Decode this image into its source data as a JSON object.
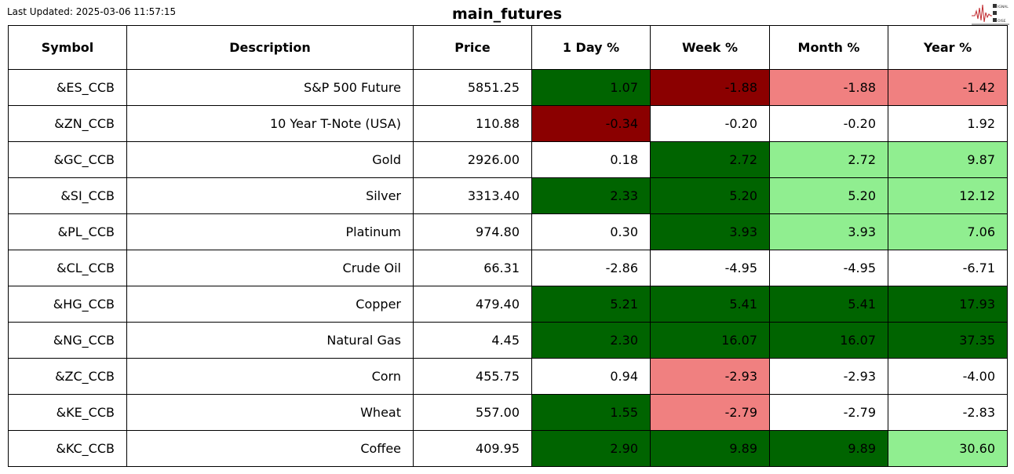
{
  "last_updated": "Last Updated: 2025-03-06 11:57:15",
  "title": "main_futures",
  "logo": {
    "text": "Signal 2 Noise",
    "accent": "#c0282d"
  },
  "colors": {
    "dark_green": "#006400",
    "dark_red": "#8b0000",
    "light_red": "#f08080",
    "light_green": "#90ee90",
    "neutral": "#ffffff"
  },
  "chart_data": {
    "type": "table",
    "title": "main_futures",
    "columns": [
      "Symbol",
      "Description",
      "Price",
      "1 Day %",
      "Week %",
      "Month %",
      "Year %"
    ],
    "rows": [
      [
        "&ES_CCB",
        "S&P 500 Future",
        "5851.25",
        "1.07",
        "-1.88",
        "-1.88",
        "-1.42"
      ],
      [
        "&ZN_CCB",
        "10 Year T-Note (USA)",
        "110.88",
        "-0.34",
        "-0.20",
        "-0.20",
        "1.92"
      ],
      [
        "&GC_CCB",
        "Gold",
        "2926.00",
        "0.18",
        "2.72",
        "2.72",
        "9.87"
      ],
      [
        "&SI_CCB",
        "Silver",
        "3313.40",
        "2.33",
        "5.20",
        "5.20",
        "12.12"
      ],
      [
        "&PL_CCB",
        "Platinum",
        "974.80",
        "0.30",
        "3.93",
        "3.93",
        "7.06"
      ],
      [
        "&CL_CCB",
        "Crude Oil",
        "66.31",
        "-2.86",
        "-4.95",
        "-4.95",
        "-6.71"
      ],
      [
        "&HG_CCB",
        "Copper",
        "479.40",
        "5.21",
        "5.41",
        "5.41",
        "17.93"
      ],
      [
        "&NG_CCB",
        "Natural Gas",
        "4.45",
        "2.30",
        "16.07",
        "16.07",
        "37.35"
      ],
      [
        "&ZC_CCB",
        "Corn",
        "455.75",
        "0.94",
        "-2.93",
        "-2.93",
        "-4.00"
      ],
      [
        "&KE_CCB",
        "Wheat",
        "557.00",
        "1.55",
        "-2.79",
        "-2.79",
        "-2.83"
      ],
      [
        "&KC_CCB",
        "Coffee",
        "409.95",
        "2.90",
        "9.89",
        "9.89",
        "30.60"
      ]
    ],
    "cell_colors": [
      [
        "dark_green",
        "dark_red",
        "light_red",
        "light_red"
      ],
      [
        "dark_red",
        "neutral",
        "neutral",
        "neutral"
      ],
      [
        "neutral",
        "dark_green",
        "light_green",
        "light_green"
      ],
      [
        "dark_green",
        "dark_green",
        "light_green",
        "light_green"
      ],
      [
        "neutral",
        "dark_green",
        "light_green",
        "light_green"
      ],
      [
        "neutral",
        "neutral",
        "neutral",
        "neutral"
      ],
      [
        "dark_green",
        "dark_green",
        "dark_green",
        "dark_green"
      ],
      [
        "dark_green",
        "dark_green",
        "dark_green",
        "dark_green"
      ],
      [
        "neutral",
        "light_red",
        "neutral",
        "neutral"
      ],
      [
        "dark_green",
        "light_red",
        "neutral",
        "neutral"
      ],
      [
        "dark_green",
        "dark_green",
        "dark_green",
        "light_green"
      ]
    ]
  }
}
